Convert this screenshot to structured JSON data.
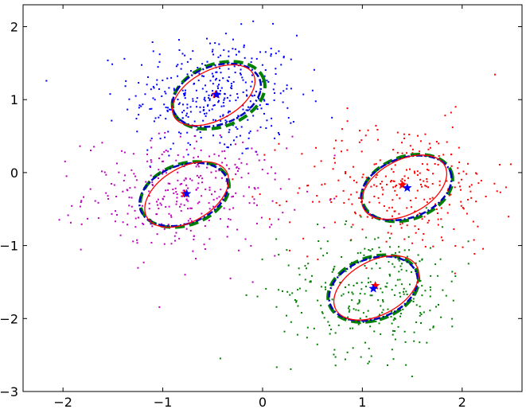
{
  "chart_data": {
    "type": "scatter",
    "title": "",
    "xlabel": "",
    "ylabel": "",
    "xlim": [
      -2.4,
      2.6
    ],
    "ylim": [
      -3.0,
      2.3
    ],
    "grid": false,
    "x_ticks": [
      {
        "value": -2,
        "label": "−2"
      },
      {
        "value": -1,
        "label": "−1"
      },
      {
        "value": 0,
        "label": "0"
      },
      {
        "value": 1,
        "label": "1"
      },
      {
        "value": 2,
        "label": "2"
      }
    ],
    "y_ticks": [
      {
        "value": 2,
        "label": "2"
      },
      {
        "value": 1,
        "label": "1"
      },
      {
        "value": 0,
        "label": "0"
      },
      {
        "value": -1,
        "label": "−1"
      },
      {
        "value": -2,
        "label": "−2"
      },
      {
        "value": -3,
        "label": "−3"
      }
    ],
    "clusters": [
      {
        "color": "#0000ff",
        "count": 380,
        "center": [
          -0.47,
          1.06
        ],
        "spread": [
          0.42,
          0.42
        ],
        "true_center": [
          -0.47,
          1.07
        ],
        "estimated_center": [
          -0.46,
          1.07
        ],
        "true_ellipse": {
          "cx": -0.49,
          "cy": 1.06,
          "rx": 0.45,
          "ry": 0.34,
          "angle": 28
        },
        "dashed_ellipse": {
          "cx": -0.44,
          "cy": 1.06,
          "rx": 0.48,
          "ry": 0.43,
          "angle": 20
        },
        "dashdot_ellipse": {
          "cx": -0.46,
          "cy": 1.06,
          "rx": 0.46,
          "ry": 0.4,
          "angle": 20
        }
      },
      {
        "color": "#bf00bf",
        "count": 330,
        "center": [
          -0.78,
          -0.3
        ],
        "spread": [
          0.5,
          0.4
        ],
        "true_center": [
          -0.78,
          -0.29
        ],
        "estimated_center": [
          -0.76,
          -0.29
        ],
        "true_ellipse": {
          "cx": -0.76,
          "cy": -0.3,
          "rx": 0.46,
          "ry": 0.37,
          "angle": 30
        },
        "dashed_ellipse": {
          "cx": -0.78,
          "cy": -0.3,
          "rx": 0.46,
          "ry": 0.42,
          "angle": 20
        },
        "dashdot_ellipse": {
          "cx": -0.79,
          "cy": -0.3,
          "rx": 0.46,
          "ry": 0.4,
          "angle": 20
        }
      },
      {
        "color": "#ff0000",
        "count": 300,
        "center": [
          1.42,
          -0.2
        ],
        "spread": [
          0.55,
          0.45
        ],
        "true_center": [
          1.4,
          -0.17
        ],
        "estimated_center": [
          1.45,
          -0.21
        ],
        "true_ellipse": {
          "cx": 1.42,
          "cy": -0.2,
          "rx": 0.46,
          "ry": 0.37,
          "angle": 28
        },
        "dashed_ellipse": {
          "cx": 1.45,
          "cy": -0.21,
          "rx": 0.47,
          "ry": 0.43,
          "angle": 20
        },
        "dashdot_ellipse": {
          "cx": 1.44,
          "cy": -0.21,
          "rx": 0.47,
          "ry": 0.41,
          "angle": 20
        }
      },
      {
        "color": "#008000",
        "count": 300,
        "center": [
          1.12,
          -1.62
        ],
        "spread": [
          0.48,
          0.44
        ],
        "true_center": [
          1.13,
          -1.55
        ],
        "estimated_center": [
          1.11,
          -1.59
        ],
        "true_ellipse": {
          "cx": 1.14,
          "cy": -1.58,
          "rx": 0.46,
          "ry": 0.37,
          "angle": 28
        },
        "dashed_ellipse": {
          "cx": 1.11,
          "cy": -1.59,
          "rx": 0.47,
          "ry": 0.43,
          "angle": 20
        },
        "dashdot_ellipse": {
          "cx": 1.11,
          "cy": -1.59,
          "rx": 0.46,
          "ry": 0.41,
          "angle": 20
        }
      }
    ],
    "styles": {
      "true_ellipse_color": "#ff0000",
      "dashed_ellipse_color": "#008000",
      "dashdot_ellipse_color": "#0000bf",
      "true_center_marker_color": "#ff0000",
      "estimated_center_marker_color": "#0000ff"
    }
  }
}
